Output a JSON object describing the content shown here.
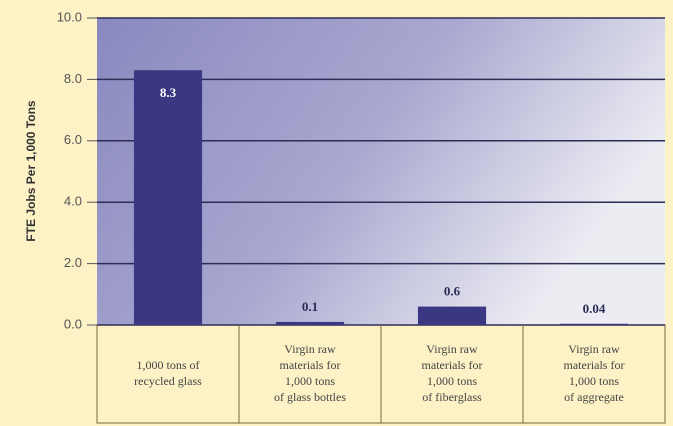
{
  "chart_data": {
    "type": "bar",
    "y_label": "FTE Jobs Per 1,000 Tons",
    "categories": [
      "1,000 tons of\nrecycled glass",
      "Virgin raw\nmaterials for\n1,000 tons\nof glass bottles",
      "Virgin raw\nmaterials for\n1,000 tons\nof fiberglass",
      "Virgin raw\nmaterials for\n1,000 tons\nof aggregate"
    ],
    "values": [
      8.3,
      0.1,
      0.6,
      0.04
    ],
    "color": "#3b3883",
    "ylim": [
      0,
      10
    ],
    "yticks": [
      {
        "value": 0,
        "label": "0.0"
      },
      {
        "value": 2,
        "label": "2.0"
      },
      {
        "value": 4,
        "label": "4.0"
      },
      {
        "value": 6,
        "label": "6.0"
      },
      {
        "value": 8,
        "label": "8.0"
      },
      {
        "value": 10,
        "label": "10.0"
      }
    ],
    "grid": true
  }
}
